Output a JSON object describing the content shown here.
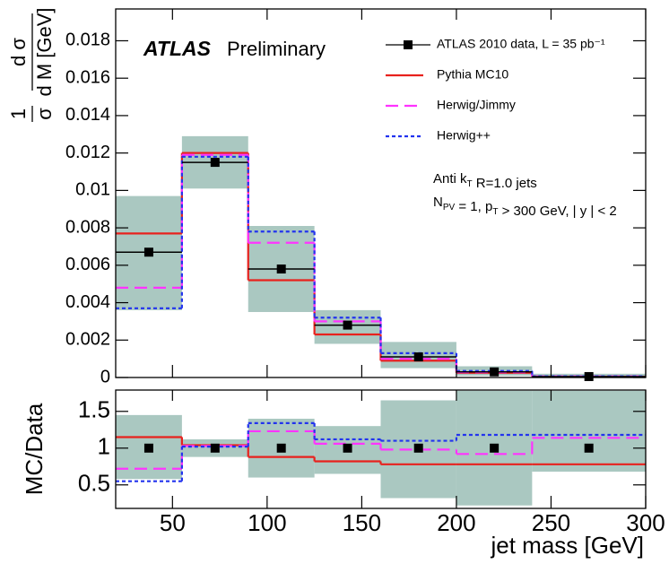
{
  "chart_data": [
    {
      "type": "histogram",
      "label": "ATLAS",
      "status": "Preliminary",
      "ylabel": [
        [
          "1",
          "σ"
        ],
        [
          "d σ",
          "d M [GeV]"
        ]
      ],
      "annotations": [
        [
          "Anti k",
          {
            "sub": "T"
          },
          " R=1.0 jets"
        ],
        [
          "N",
          {
            "sub": "PV"
          },
          " = 1, p",
          {
            "sub": "T"
          },
          " > 300 GeV, | y | < 2"
        ]
      ],
      "bins": [
        20,
        55,
        90,
        125,
        160,
        200,
        240,
        300
      ],
      "band": {
        "color": "#aac8c1",
        "low": [
          0.0036,
          0.0101,
          0.0035,
          0.0018,
          0.0005,
          0.0001,
          0
        ],
        "high": [
          0.0097,
          0.0129,
          0.0081,
          0.0036,
          0.0019,
          0.0006,
          0.0002
        ]
      },
      "series": [
        {
          "name": "Pythia MC10",
          "color": "#e8211d",
          "style": "line",
          "dash": "none",
          "values": [
            0.0077,
            0.012,
            0.0052,
            0.0023,
            0.0009,
            0.00025,
            4e-05
          ]
        },
        {
          "name": "Herwig/Jimmy",
          "color": "#ff33ff",
          "style": "line",
          "dash": "14 7",
          "values": [
            0.0048,
            0.0119,
            0.0072,
            0.003,
            0.001,
            0.00028,
            6e-05
          ]
        },
        {
          "name": "Herwig++",
          "color": "#2233ee",
          "style": "line",
          "dash": "4 3",
          "values": [
            0.0037,
            0.0118,
            0.0078,
            0.0032,
            0.0013,
            0.00035,
            6e-05
          ]
        },
        {
          "name": "ATLAS 2010 data, L =  35 pb⁻¹",
          "color": "#000000",
          "style": "points-binned",
          "values": [
            0.0067,
            0.0115,
            0.0058,
            0.0028,
            0.0011,
            0.0003,
            5e-05
          ]
        }
      ],
      "legend": "top-right",
      "xlim": [
        20,
        300
      ],
      "xticks": [
        50,
        100,
        150,
        200,
        250,
        300
      ],
      "ylim": [
        0,
        0.0197
      ],
      "yticks": [
        0,
        0.002,
        0.004,
        0.006,
        0.008,
        0.01,
        0.012,
        0.014,
        0.016,
        0.018
      ]
    },
    {
      "type": "histogram",
      "ylabel": "MC/Data",
      "xlabel": "jet mass [GeV]",
      "bins": [
        20,
        55,
        90,
        125,
        160,
        200,
        240,
        300
      ],
      "band": {
        "color": "#aac8c1",
        "low": [
          0.58,
          0.88,
          0.6,
          0.65,
          0.32,
          0.22,
          0.68
        ],
        "high": [
          1.45,
          1.12,
          1.4,
          1.3,
          1.65,
          1.78,
          1.78
        ]
      },
      "series": [
        {
          "color": "#e8211d",
          "style": "line",
          "dash": "none",
          "values": [
            1.15,
            1.04,
            0.88,
            0.82,
            0.78,
            0.78,
            0.78
          ]
        },
        {
          "color": "#ff33ff",
          "style": "line",
          "dash": "14 7",
          "values": [
            0.72,
            1.03,
            1.23,
            1.06,
            0.98,
            0.92,
            1.14
          ]
        },
        {
          "color": "#2233ee",
          "style": "line",
          "dash": "4 3",
          "values": [
            0.55,
            1.02,
            1.34,
            1.12,
            1.1,
            1.18,
            1.18
          ]
        },
        {
          "color": "#000000",
          "style": "points",
          "values": [
            1,
            1,
            1,
            1,
            1,
            1,
            1
          ]
        }
      ],
      "xlim": [
        20,
        300
      ],
      "xticks": [
        50,
        100,
        150,
        200,
        250,
        300
      ],
      "ylim": [
        0.18,
        1.79
      ],
      "yticks": [
        0.5,
        1,
        1.5
      ]
    }
  ]
}
